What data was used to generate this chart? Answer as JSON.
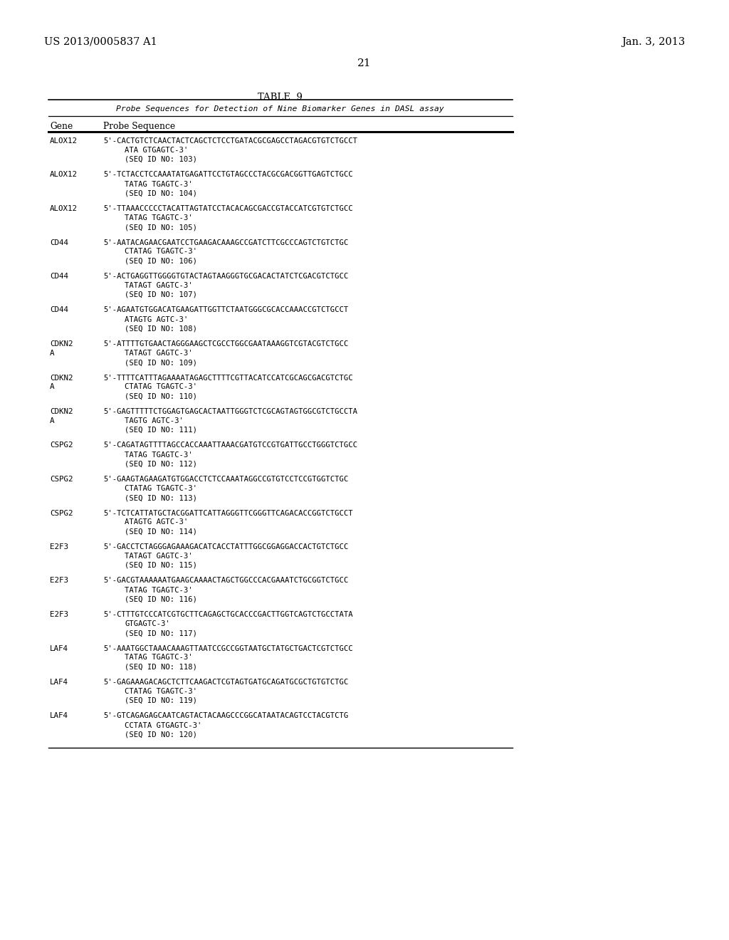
{
  "patent_number": "US 2013/0005837 A1",
  "patent_date": "Jan. 3, 2013",
  "page_number": "21",
  "table_title": "TABLE  9",
  "table_subtitle": "Probe Sequences for Detection of Nine Biomarker Genes in DASL assay",
  "col_gene": "Gene",
  "col_probe": "Probe Sequence",
  "background_color": "#ffffff",
  "text_color": "#000000",
  "entries": [
    {
      "gene": "ALOX12",
      "gene2": "",
      "line1": "5'-CACTGTCTCAACTACTCAGCTCTCCTGATACGCGAGCCTAGACGTGTCTGCCT",
      "line2": "ATA GTGAGTC-3'",
      "line3": "(SEQ ID NO: 103)"
    },
    {
      "gene": "ALOX12",
      "gene2": "",
      "line1": "5'-TCTACCTCCAAATATGAGATTCCTGTAGCCCTACGCGACGGTTGAGTCTGCC",
      "line2": "TATAG TGAGTC-3'",
      "line3": "(SEQ ID NO: 104)"
    },
    {
      "gene": "ALOX12",
      "gene2": "",
      "line1": "5'-TTAAACCCCCTACATTAGTATCCTACACAGCGACCGTACCATCGTGTCTGCC",
      "line2": "TATAG TGAGTC-3'",
      "line3": "(SEQ ID NO: 105)"
    },
    {
      "gene": "CD44",
      "gene2": "",
      "line1": "5'-AATACAGAACGAATCCTGAAGACAAAGCCGATCTTCGCCCAGTCTGTCTGC",
      "line2": "CTATAG TGAGTC-3'",
      "line3": "(SEQ ID NO: 106)"
    },
    {
      "gene": "CD44",
      "gene2": "",
      "line1": "5'-ACTGAGGTTGGGGTGTACTAGTAAGGGTGCGACACTATCTCGACGTCTGCC",
      "line2": "TATAGT GAGTC-3'",
      "line3": "(SEQ ID NO: 107)"
    },
    {
      "gene": "CD44",
      "gene2": "",
      "line1": "5'-AGAATGTGGACATGAAGATTGGTTCTAATGGGCGCACCAAACCGTCTGCCT",
      "line2": "ATAGTG AGTC-3'",
      "line3": "(SEQ ID NO: 108)"
    },
    {
      "gene": "CDKN2",
      "gene2": "A",
      "line1": "5'-ATTTTGTGAACTAGGGAAGCTCGCCTGGCGAATAAAGGTCGTACGTCTGCC",
      "line2": "TATAGT GAGTC-3'",
      "line3": "(SEQ ID NO: 109)"
    },
    {
      "gene": "CDKN2",
      "gene2": "A",
      "line1": "5'-TTTTCATTTAGAAAATAGAGCTTTTCGTTACATCCATCGCAGCGACGTCTGC",
      "line2": "CTATAG TGAGTC-3'",
      "line3": "(SEQ ID NO: 110)"
    },
    {
      "gene": "CDKN2",
      "gene2": "A",
      "line1": "5'-GAGTTTTTCTGGAGTGAGCACTAATTGGGTCTCGCAGTAGTGGCGTCTGCCTA",
      "line2": "TAGTG AGTC-3'",
      "line3": "(SEQ ID NO: 111)"
    },
    {
      "gene": "CSPG2",
      "gene2": "",
      "line1": "5'-CAGATAGTTTTAGCCACCAAATTAAACGATGTCCGTGATTGCCTGGGTCTGCC",
      "line2": "TATAG TGAGTC-3'",
      "line3": "(SEQ ID NO: 112)"
    },
    {
      "gene": "CSPG2",
      "gene2": "",
      "line1": "5'-GAAGTAGAAGATGTGGACCTCTCCAAATAGGCCGTGTCCTCCGTGGTCTGC",
      "line2": "CTATAG TGAGTC-3'",
      "line3": "(SEQ ID NO: 113)"
    },
    {
      "gene": "CSPG2",
      "gene2": "",
      "line1": "5'-TCTCATTATGCTACGGATTCATTAGGGTTCGGGTTCAGACACCGGTCTGCCT",
      "line2": "ATAGTG AGTC-3'",
      "line3": "(SEQ ID NO: 114)"
    },
    {
      "gene": "E2F3",
      "gene2": "",
      "line1": "5'-GACCTCTAGGGAGAAAGACATCACCTATTTGGCGGAGGACCACTGTCTGCC",
      "line2": "TATAGT GAGTC-3'",
      "line3": "(SEQ ID NO: 115)"
    },
    {
      "gene": "E2F3",
      "gene2": "",
      "line1": "5'-GACGTAAAAAATGAAGCAAAACTAGCTGGCCCACGAAATCTGCGGTCTGCC",
      "line2": "TATAG TGAGTC-3'",
      "line3": "(SEQ ID NO: 116)"
    },
    {
      "gene": "E2F3",
      "gene2": "",
      "line1": "5'-CTTTGTCCCATCGTGCTTCAGAGCTGCACCCGACTTGGTCAGTCTGCCTATA",
      "line2": "GTGAGTC-3'",
      "line3": "(SEQ ID NO: 117)"
    },
    {
      "gene": "LAF4",
      "gene2": "",
      "line1": "5'-AAATGGCTAAACAAAGTTAATCCGCCGGTAATGCTATGCTGACTCGTCTGCC",
      "line2": "TATAG TGAGTC-3'",
      "line3": "(SEQ ID NO: 118)"
    },
    {
      "gene": "LAF4",
      "gene2": "",
      "line1": "5'-GAGAAAGACAGCTCTTCAAGACTCGTAGTGATGCAGATGCGCTGTGTCTGC",
      "line2": "CTATAG TGAGTC-3'",
      "line3": "(SEQ ID NO: 119)"
    },
    {
      "gene": "LAF4",
      "gene2": "",
      "line1": "5'-GTCAGAGAGCAATCAGTACTACAAGCCCGGCATAATACAGTCCTACGTCTG",
      "line2": "CCTATA GTGAGTC-3'",
      "line3": "(SEQ ID NO: 120)"
    }
  ]
}
